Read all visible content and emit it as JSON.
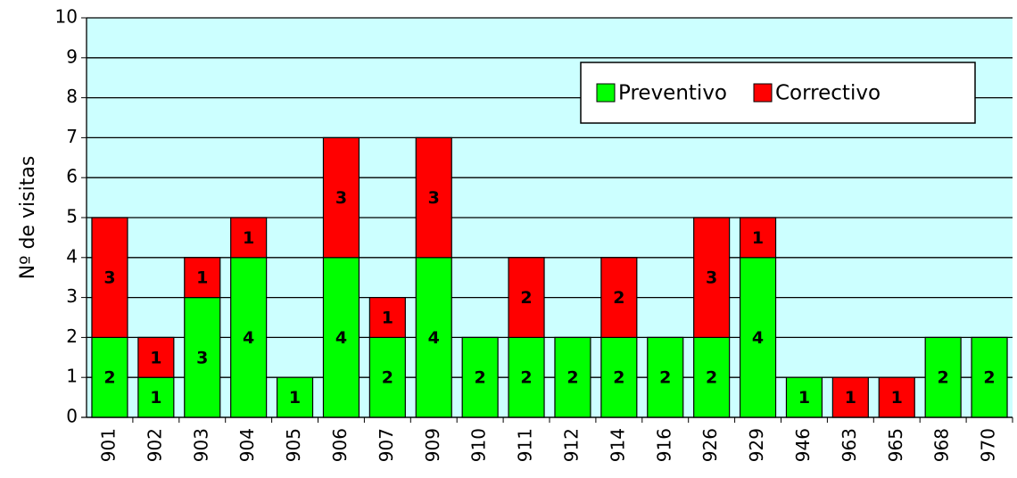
{
  "chart_data": {
    "type": "stacked_bar",
    "y_label": "Nº de visitas",
    "categories": [
      "901",
      "902",
      "903",
      "904",
      "905",
      "906",
      "907",
      "909",
      "910",
      "911",
      "912",
      "914",
      "916",
      "926",
      "929",
      "946",
      "963",
      "965",
      "968",
      "970"
    ],
    "series": [
      {
        "name": "Preventivo",
        "color": "#00ff00",
        "values": [
          2,
          1,
          3,
          4,
          1,
          4,
          2,
          4,
          2,
          2,
          2,
          2,
          2,
          2,
          4,
          1,
          0,
          0,
          2,
          2
        ]
      },
      {
        "name": "Correctivo",
        "color": "#ff0000",
        "values": [
          3,
          1,
          1,
          1,
          0,
          3,
          1,
          3,
          0,
          2,
          0,
          2,
          0,
          3,
          1,
          0,
          1,
          1,
          0,
          0
        ]
      }
    ],
    "ylim": [
      0,
      10
    ],
    "yticks": [
      0,
      1,
      2,
      3,
      4,
      5,
      6,
      7,
      8,
      9,
      10
    ],
    "grid": true,
    "legend": "upper right",
    "background": "#ccffff"
  }
}
